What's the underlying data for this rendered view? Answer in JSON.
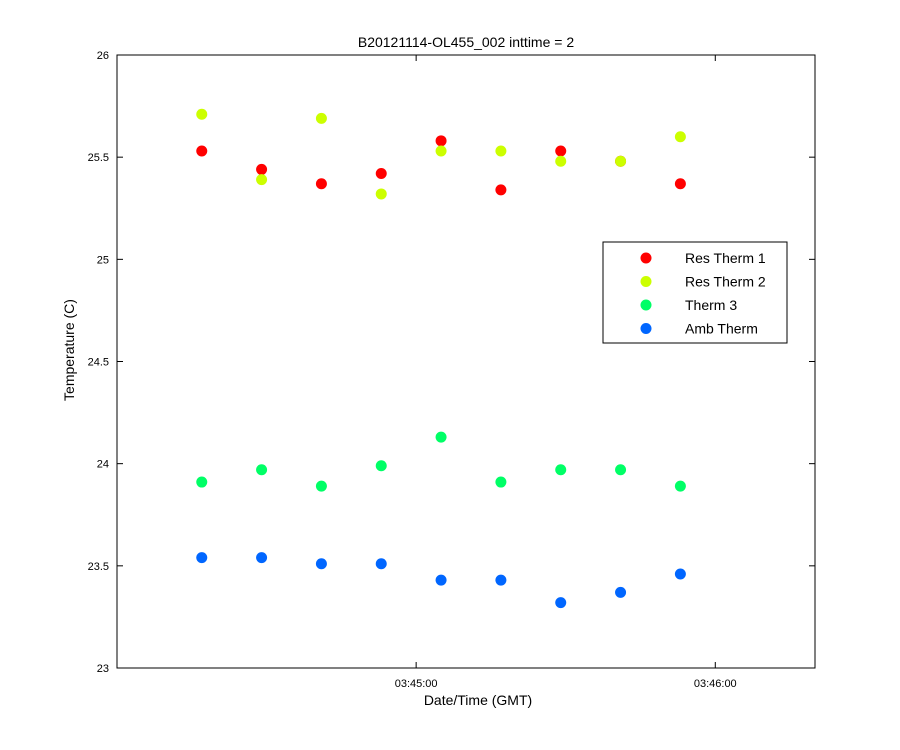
{
  "chart_data": {
    "type": "scatter",
    "title": "B20121114-OL455_002 inttime = 2",
    "xlabel": "Date/Time (GMT)",
    "ylabel": "Temperature (C)",
    "x_range_seconds_after_03_44": [
      0,
      140
    ],
    "ylim": [
      23,
      26
    ],
    "x_ticks": [
      {
        "label": "03:45:00",
        "value": "03:45:00"
      },
      {
        "label": "03:46:00",
        "value": "03:46:00"
      }
    ],
    "y_ticks": [
      {
        "label": "23",
        "value": 23
      },
      {
        "label": "23.5",
        "value": 23.5
      },
      {
        "label": "24",
        "value": 24
      },
      {
        "label": "24.5",
        "value": 24.5
      },
      {
        "label": "25",
        "value": 25
      },
      {
        "label": "25.5",
        "value": 25.5
      },
      {
        "label": "26",
        "value": 26
      }
    ],
    "x": [
      "03:44:17",
      "03:44:29",
      "03:44:41",
      "03:44:53",
      "03:45:05",
      "03:45:17",
      "03:45:29",
      "03:45:41",
      "03:45:53"
    ],
    "series": [
      {
        "name": "Res Therm 1",
        "color": "#ff0000",
        "values": [
          25.53,
          25.44,
          25.37,
          25.42,
          25.58,
          25.34,
          25.53,
          25.48,
          25.37
        ]
      },
      {
        "name": "Res Therm 2",
        "color": "#ccff00",
        "values": [
          25.71,
          25.39,
          25.69,
          25.32,
          25.53,
          25.53,
          25.48,
          25.48,
          25.6
        ]
      },
      {
        "name": "Therm 3",
        "color": "#00ff66",
        "values": [
          23.91,
          23.97,
          23.89,
          23.99,
          24.13,
          23.91,
          23.97,
          23.97,
          23.89
        ]
      },
      {
        "name": "Amb Therm",
        "color": "#0066ff",
        "values": [
          23.54,
          23.54,
          23.51,
          23.51,
          23.43,
          23.43,
          23.32,
          23.37,
          23.46
        ]
      }
    ],
    "legend_position": "right-middle",
    "grid": false
  }
}
